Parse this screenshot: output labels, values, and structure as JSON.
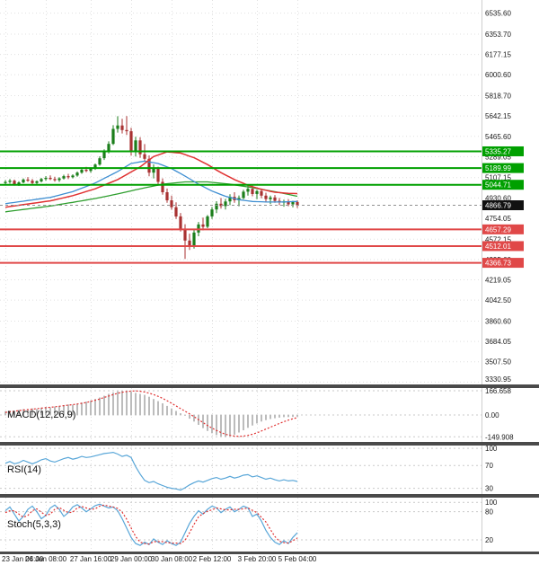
{
  "chart_data": {
    "type": "candlestick",
    "timeframe_note": "4h candles",
    "x_labels": [
      "23 Jan 04:00",
      "26 Jan 08:00",
      "27 Jan 16:00",
      "29 Jan 00:00",
      "30 Jan 08:00",
      "2 Feb 12:00",
      "3 Feb 20:00",
      "5 Feb 04:00"
    ],
    "y_axis_labels": [
      "6535.60",
      "6353.70",
      "6177.15",
      "6000.60",
      "5818.70",
      "5642.15",
      "5465.60",
      "5289.05",
      "5107.15",
      "4930.60",
      "4754.05",
      "4572.15",
      "4395.60",
      "4219.05",
      "4042.50",
      "3860.60",
      "3684.05",
      "3507.50",
      "3330.95"
    ],
    "price_range": {
      "min": 3310,
      "max": 6650
    },
    "current_price": {
      "value": "4866.79",
      "color": "#111111"
    },
    "levels": {
      "resistance": [
        {
          "value": "5335.27"
        },
        {
          "value": "5189.99"
        },
        {
          "value": "5044.71"
        }
      ],
      "support": [
        {
          "value": "4657.29"
        },
        {
          "value": "4512.01"
        },
        {
          "value": "4366.73"
        }
      ]
    },
    "colors": {
      "bull": "#1b7e1b",
      "bear": "#a83232",
      "ma_red": "#e03232",
      "ma_blue": "#3f8fd2",
      "ma_green": "#2e9e2e",
      "resistance": "#00a000",
      "support": "#e04848",
      "grid": "#e0e0e0",
      "hist": "#bcbcbc",
      "signal": "#e03232",
      "rsi": "#58a6d8",
      "stoch_k": "#58a6d8",
      "stoch_d": "#e03232"
    },
    "candles": [
      [
        5060,
        5085,
        5040,
        5070
      ],
      [
        5070,
        5095,
        5055,
        5080
      ],
      [
        5080,
        5090,
        5038,
        5050
      ],
      [
        5050,
        5075,
        5035,
        5065
      ],
      [
        5065,
        5100,
        5058,
        5090
      ],
      [
        5090,
        5112,
        5070,
        5080
      ],
      [
        5080,
        5095,
        5048,
        5060
      ],
      [
        5060,
        5082,
        5045,
        5075
      ],
      [
        5075,
        5105,
        5065,
        5095
      ],
      [
        5095,
        5120,
        5080,
        5105
      ],
      [
        5105,
        5126,
        5085,
        5095
      ],
      [
        5095,
        5115,
        5072,
        5085
      ],
      [
        5085,
        5110,
        5070,
        5100
      ],
      [
        5100,
        5132,
        5090,
        5120
      ],
      [
        5120,
        5140,
        5094,
        5110
      ],
      [
        5110,
        5136,
        5100,
        5125
      ],
      [
        5125,
        5160,
        5114,
        5150
      ],
      [
        5150,
        5186,
        5140,
        5175
      ],
      [
        5175,
        5200,
        5154,
        5165
      ],
      [
        5165,
        5196,
        5150,
        5185
      ],
      [
        5185,
        5230,
        5174,
        5220
      ],
      [
        5220,
        5292,
        5210,
        5275
      ],
      [
        5275,
        5352,
        5260,
        5330
      ],
      [
        5330,
        5422,
        5318,
        5400
      ],
      [
        5400,
        5562,
        5390,
        5530
      ],
      [
        5530,
        5640,
        5498,
        5560
      ],
      [
        5560,
        5618,
        5490,
        5520
      ],
      [
        5520,
        5642,
        5478,
        5510
      ],
      [
        5510,
        5540,
        5298,
        5330
      ],
      [
        5330,
        5462,
        5290,
        5430
      ],
      [
        5430,
        5458,
        5278,
        5310
      ],
      [
        5310,
        5398,
        5248,
        5270
      ],
      [
        5270,
        5300,
        5118,
        5150
      ],
      [
        5150,
        5222,
        5100,
        5190
      ],
      [
        5190,
        5202,
        5048,
        5070
      ],
      [
        5070,
        5100,
        4958,
        4980
      ],
      [
        4980,
        5012,
        4888,
        4910
      ],
      [
        4910,
        4950,
        4828,
        4850
      ],
      [
        4850,
        4892,
        4748,
        4770
      ],
      [
        4770,
        4800,
        4638,
        4660
      ],
      [
        4660,
        4702,
        4400,
        4560
      ],
      [
        4560,
        4620,
        4478,
        4510
      ],
      [
        4510,
        4652,
        4490,
        4630
      ],
      [
        4630,
        4722,
        4598,
        4700
      ],
      [
        4700,
        4760,
        4648,
        4680
      ],
      [
        4680,
        4782,
        4668,
        4770
      ],
      [
        4770,
        4852,
        4748,
        4830
      ],
      [
        4830,
        4902,
        4798,
        4880
      ],
      [
        4880,
        4930,
        4838,
        4860
      ],
      [
        4860,
        4922,
        4830,
        4900
      ],
      [
        4900,
        4962,
        4868,
        4940
      ],
      [
        4940,
        4980,
        4888,
        4910
      ],
      [
        4910,
        4952,
        4858,
        4930
      ],
      [
        4930,
        5002,
        4918,
        4985
      ],
      [
        4985,
        5035,
        4950,
        5010
      ],
      [
        5010,
        5045,
        4945,
        4965
      ],
      [
        4965,
        5000,
        4920,
        4990
      ],
      [
        4990,
        5012,
        4928,
        4950
      ],
      [
        4950,
        4976,
        4898,
        4920
      ],
      [
        4920,
        4950,
        4878,
        4935
      ],
      [
        4935,
        4956,
        4888,
        4905
      ],
      [
        4905,
        4930,
        4868,
        4890
      ],
      [
        4890,
        4916,
        4854,
        4900
      ],
      [
        4900,
        4920,
        4858,
        4875
      ],
      [
        4875,
        4906,
        4848,
        4895
      ],
      [
        4895,
        4910,
        4843,
        4866.79
      ]
    ],
    "ma_green": [
      4810,
      4815,
      4820,
      4825,
      4830,
      4835,
      4840,
      4845,
      4850,
      4855,
      4860,
      4866,
      4873,
      4879,
      4886,
      4892,
      4899,
      4905,
      4912,
      4918,
      4925,
      4933,
      4941,
      4949,
      4957,
      4965,
      4974,
      4983,
      4992,
      5001,
      5010,
      5018,
      5026,
      5034,
      5042,
      5050,
      5054,
      5058,
      5062,
      5066,
      5070,
      5070,
      5070,
      5070,
      5070,
      5070,
      5066,
      5062,
      5058,
      5054,
      5050,
      5044,
      5038,
      5032,
      5026,
      5020,
      5013,
      5006,
      4999,
      4992,
      4985,
      4977,
      4969,
      4961,
      4953,
      4945
    ],
    "ma_blue": [
      4880,
      4886,
      4891,
      4897,
      4902,
      4908,
      4913,
      4919,
      4924,
      4930,
      4935,
      4945,
      4955,
      4965,
      4975,
      4985,
      5000,
      5015,
      5030,
      5045,
      5060,
      5080,
      5100,
      5120,
      5140,
      5160,
      5183,
      5207,
      5230,
      5237,
      5244,
      5250,
      5243,
      5237,
      5230,
      5215,
      5200,
      5185,
      5163,
      5142,
      5120,
      5097,
      5073,
      5050,
      5030,
      5010,
      4990,
      4975,
      4960,
      4945,
      4935,
      4925,
      4915,
      4910,
      4905,
      4900,
      4898,
      4897,
      4895,
      4895,
      4895,
      4895,
      4896,
      4897,
      4899,
      4900
    ],
    "ma_red": [
      4850,
      4856,
      4861,
      4867,
      4872,
      4878,
      4883,
      4889,
      4894,
      4900,
      4905,
      4914,
      4923,
      4932,
      4941,
      4950,
      4962,
      4974,
      4986,
      4998,
      5010,
      5026,
      5042,
      5058,
      5074,
      5090,
      5112,
      5134,
      5156,
      5178,
      5200,
      5230,
      5260,
      5290,
      5303,
      5317,
      5330,
      5327,
      5323,
      5320,
      5307,
      5293,
      5280,
      5260,
      5240,
      5220,
      5197,
      5173,
      5150,
      5130,
      5110,
      5090,
      5073,
      5057,
      5040,
      5028,
      5017,
      5005,
      4997,
      4988,
      4980,
      4977,
      4973,
      4970,
      4969,
      4968
    ],
    "panels": {
      "macd": {
        "title": "MACD(12,26,9)",
        "levels": [
          "166.658",
          "0.00",
          "-149.908"
        ],
        "range": [
          -185,
          185
        ],
        "hist": [
          25,
          30,
          28,
          35,
          40,
          38,
          45,
          42,
          50,
          55,
          52,
          58,
          62,
          68,
          72,
          70,
          78,
          85,
          92,
          100,
          110,
          120,
          132,
          145,
          155,
          162,
          166,
          165,
          160,
          152,
          145,
          138,
          125,
          110,
          95,
          80,
          62,
          45,
          28,
          12,
          -5,
          -25,
          -45,
          -68,
          -90,
          -110,
          -125,
          -138,
          -148,
          -150,
          -145,
          -135,
          -120,
          -105,
          -88,
          -72,
          -58,
          -45,
          -35,
          -28,
          -22,
          -18,
          -15,
          -14,
          -13,
          -12
        ],
        "signal": [
          18,
          22,
          26,
          30,
          34,
          37,
          40,
          43,
          47,
          50,
          53,
          56,
          60,
          64,
          68,
          71,
          75,
          80,
          86,
          93,
          101,
          110,
          120,
          130,
          140,
          149,
          156,
          161,
          164,
          165,
          163,
          158,
          150,
          140,
          128,
          114,
          98,
          80,
          62,
          44,
          26,
          8,
          -12,
          -32,
          -52,
          -72,
          -90,
          -106,
          -120,
          -132,
          -140,
          -145,
          -147,
          -145,
          -140,
          -132,
          -122,
          -110,
          -97,
          -84,
          -71,
          -58,
          -46,
          -35,
          -26,
          -18
        ]
      },
      "rsi": {
        "title": "RSI(14)",
        "levels": [
          "100",
          "70",
          "30"
        ],
        "range": [
          20,
          105
        ],
        "values": [
          74,
          77,
          73,
          75,
          79,
          76,
          73,
          76,
          80,
          82,
          78,
          76,
          79,
          82,
          84,
          81,
          83,
          86,
          84,
          85,
          87,
          89,
          91,
          92,
          93,
          90,
          86,
          88,
          84,
          68,
          55,
          44,
          40,
          42,
          38,
          35,
          32,
          30,
          29,
          27,
          31,
          36,
          40,
          43,
          41,
          44,
          47,
          49,
          46,
          48,
          51,
          48,
          50,
          53,
          54,
          50,
          52,
          49,
          46,
          48,
          45,
          43,
          45,
          43,
          44,
          42
        ]
      },
      "stoch": {
        "title": "Stoch(5,3,3)",
        "levels": [
          "100",
          "80",
          "20"
        ],
        "range": [
          -5,
          110
        ],
        "k": [
          82,
          90,
          75,
          60,
          70,
          85,
          92,
          80,
          65,
          72,
          88,
          94,
          85,
          70,
          78,
          90,
          95,
          88,
          80,
          86,
          93,
          96,
          92,
          88,
          90,
          82,
          65,
          45,
          25,
          12,
          8,
          15,
          10,
          22,
          15,
          10,
          18,
          12,
          8,
          15,
          35,
          55,
          70,
          82,
          75,
          85,
          92,
          88,
          78,
          85,
          90,
          80,
          85,
          92,
          88,
          70,
          75,
          60,
          40,
          25,
          15,
          10,
          18,
          12,
          25,
          35
        ],
        "d": [
          78,
          82,
          82,
          75,
          68,
          72,
          82,
          86,
          79,
          72,
          75,
          85,
          89,
          83,
          78,
          79,
          88,
          91,
          88,
          85,
          86,
          92,
          94,
          92,
          90,
          87,
          79,
          64,
          45,
          27,
          15,
          12,
          11,
          16,
          16,
          16,
          14,
          13,
          13,
          12,
          19,
          35,
          53,
          69,
          76,
          81,
          84,
          88,
          86,
          84,
          84,
          85,
          85,
          86,
          88,
          83,
          78,
          68,
          58,
          42,
          27,
          17,
          14,
          13,
          18,
          24
        ]
      }
    }
  }
}
